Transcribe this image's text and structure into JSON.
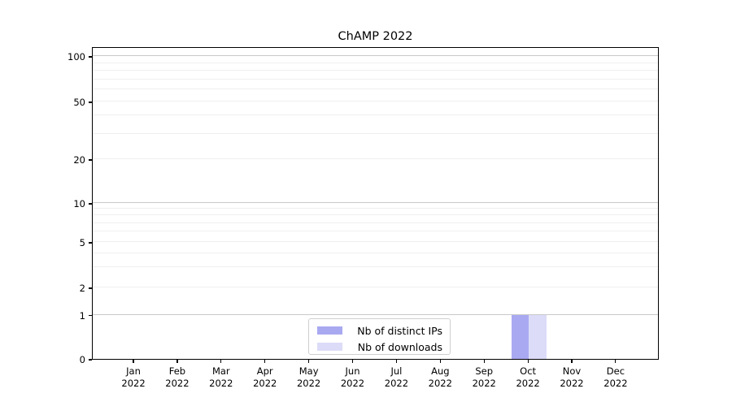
{
  "chart_data": {
    "type": "bar",
    "title": "ChAMP 2022",
    "categories": [
      "Jan 2022",
      "Feb 2022",
      "Mar 2022",
      "Apr 2022",
      "May 2022",
      "Jun 2022",
      "Jul 2022",
      "Aug 2022",
      "Sep 2022",
      "Oct 2022",
      "Nov 2022",
      "Dec 2022"
    ],
    "series": [
      {
        "name": "Nb of distinct IPs",
        "color": "#a9a9f2",
        "values": [
          0,
          0,
          0,
          0,
          0,
          0,
          0,
          0,
          0,
          1,
          0,
          0
        ]
      },
      {
        "name": "Nb of downloads",
        "color": "#dcdcf8",
        "values": [
          0,
          0,
          0,
          0,
          0,
          0,
          0,
          0,
          0,
          1,
          0,
          0
        ]
      }
    ],
    "xlabel": "",
    "ylabel": "",
    "yscale": "symlog",
    "yticks": [
      0,
      1,
      2,
      5,
      10,
      20,
      50,
      100
    ],
    "minor_gridline_values": [
      3,
      4,
      6,
      7,
      8,
      9,
      30,
      40,
      60,
      70,
      80,
      90
    ],
    "ylim": [
      0,
      110
    ],
    "grid": "horizontal",
    "legend_position": "lower center"
  },
  "colors": {
    "major_grid": "#c9c9c9",
    "minor_grid": "#efefef",
    "spine": "#000000",
    "legend_border": "#cfcfcf"
  }
}
